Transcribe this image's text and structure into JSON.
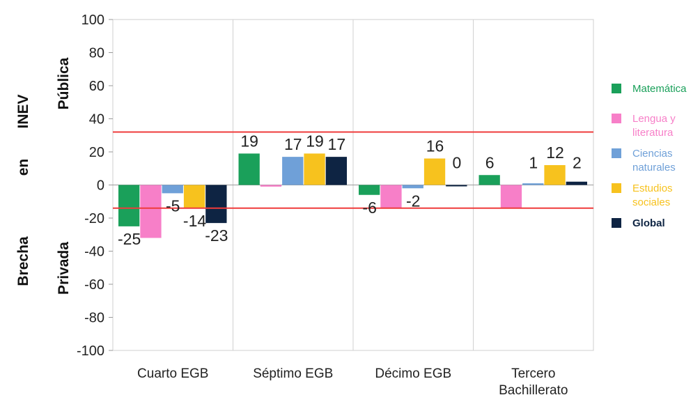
{
  "chart_data": {
    "type": "bar",
    "categories": [
      "Cuarto EGB",
      "Séptimo EGB",
      "Décimo EGB",
      "Tercero Bachillerato"
    ],
    "category_lines": [
      [
        "Cuarto EGB"
      ],
      [
        "Séptimo EGB"
      ],
      [
        "Décimo EGB"
      ],
      [
        "Tercero",
        "Bachillerato"
      ]
    ],
    "series": [
      {
        "name": "Matemática",
        "color": "#1aa05a",
        "values": [
          -25,
          19,
          -6,
          6
        ]
      },
      {
        "name": "Lengua y literatura",
        "lines": [
          "Lengua y",
          "literatura"
        ],
        "color": "#f77fc8",
        "values": [
          -32,
          -1,
          -14,
          -14
        ]
      },
      {
        "name": "Ciencias naturales",
        "lines": [
          "Ciencias",
          "naturales"
        ],
        "color": "#6fa0d8",
        "values": [
          -5,
          17,
          -2,
          1
        ]
      },
      {
        "name": "Estudios sociales",
        "lines": [
          "Estudios",
          "sociales"
        ],
        "color": "#f7c21e",
        "values": [
          -14,
          19,
          16,
          12
        ]
      },
      {
        "name": "Global",
        "color": "#0e2443",
        "values": [
          -23,
          17,
          0,
          2
        ]
      }
    ],
    "data_labels": [
      [
        "-25",
        "",
        "-5",
        "-14",
        "-23"
      ],
      [
        "19",
        "",
        "17",
        "19",
        "17"
      ],
      [
        "-6",
        "",
        "-2",
        "16",
        "0"
      ],
      [
        "6",
        "",
        "1",
        "12",
        "2"
      ]
    ],
    "reference_lines": [
      32,
      -14
    ],
    "reference_color": "#ef3b3b",
    "ylim": [
      -100,
      100
    ],
    "yticks": [
      -100,
      -80,
      -60,
      -40,
      -20,
      0,
      20,
      40,
      60,
      80,
      100
    ],
    "ylabel_parts": [
      "Brecha",
      "en",
      "INEV"
    ],
    "ylabel_top": "Pública",
    "ylabel_bottom": "Privada",
    "grid": false,
    "legend_position": "right"
  }
}
